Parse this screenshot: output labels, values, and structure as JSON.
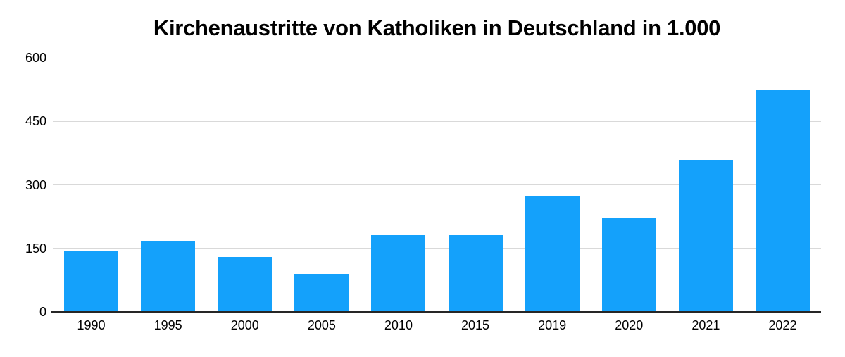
{
  "chart_data": {
    "type": "bar",
    "title": "Kirchenaustritte von Katholiken in Deutschland in 1.000",
    "categories": [
      "1990",
      "1995",
      "2000",
      "2005",
      "2010",
      "2015",
      "2019",
      "2020",
      "2021",
      "2022"
    ],
    "values": [
      143,
      168,
      129,
      90,
      181,
      182,
      273,
      221,
      359,
      523
    ],
    "xlabel": "",
    "ylabel": "",
    "ylim": [
      0,
      600
    ],
    "yticks": [
      0,
      150,
      300,
      450,
      600
    ],
    "grid": true,
    "legend": false,
    "bar_color": "#14A1FB",
    "gridline_color": "#D9D9D9",
    "axis_color": "#262626",
    "text_color": "#000000",
    "background": "#FFFFFF"
  }
}
